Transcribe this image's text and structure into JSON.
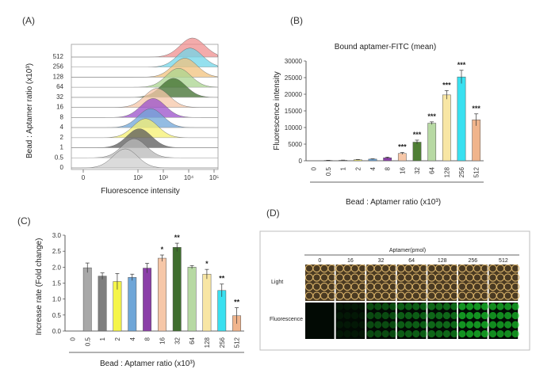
{
  "panel_labels": [
    "(A)",
    "(B)",
    "(C)",
    "(D)"
  ],
  "chart_data": [
    {
      "id": "A",
      "type": "area",
      "xlabel": "Fluorescence intensity",
      "ylabel": "Bead : Aptamer ratio (x10³)",
      "x_scale": "log",
      "x_ticks": [
        "0",
        "10²",
        "10³",
        "10⁴",
        "10⁵"
      ],
      "categories": [
        "0",
        "0.5",
        "1",
        "2",
        "4",
        "8",
        "16",
        "32",
        "64",
        "128",
        "256",
        "512"
      ],
      "peak_log10": [
        1.5,
        1.85,
        2.05,
        2.3,
        2.5,
        2.6,
        2.75,
        3.4,
        3.6,
        3.85,
        4.05,
        4.15
      ],
      "colors": [
        "#cfcfcf",
        "#b8b8b8",
        "#5a5a5a",
        "#f5f070",
        "#6fa6d8",
        "#9a4fc9",
        "#f6c7a8",
        "#3f6e2e",
        "#a9d48f",
        "#f2c27c",
        "#72d5e8",
        "#ef8f8f"
      ]
    },
    {
      "id": "B",
      "type": "bar",
      "title": "Bound aptamer-FITC (mean)",
      "xlabel": "Bead : Aptamer ratio (x10³)",
      "ylabel": "Fluorescence intensity",
      "ylim": [
        0,
        30000
      ],
      "yticks": [
        "0",
        "5000",
        "10000",
        "15000",
        "20000",
        "25000",
        "30000"
      ],
      "categories": [
        "0",
        "0.5",
        "1",
        "2",
        "4",
        "8",
        "16",
        "32",
        "64",
        "128",
        "256",
        "512"
      ],
      "values": [
        0,
        100,
        150,
        300,
        500,
        900,
        2200,
        5600,
        11300,
        19800,
        25200,
        12300
      ],
      "errors": [
        0,
        50,
        50,
        80,
        100,
        200,
        300,
        600,
        400,
        1300,
        2000,
        1800
      ],
      "significance": [
        "",
        "",
        "",
        "",
        "",
        "",
        "***",
        "***",
        "***",
        "***",
        "***",
        "***"
      ],
      "colors": [
        "#8c8c8c",
        "#7f7f7f",
        "#d8d8d8",
        "#f5f070",
        "#6fa6d8",
        "#8b3fa8",
        "#f6c7a8",
        "#4f7f35",
        "#b7d9a3",
        "#f8e6a4",
        "#39e0f0",
        "#f0b48c"
      ]
    },
    {
      "id": "C",
      "type": "bar",
      "xlabel": "Bead : Aptamer ratio (x10³)",
      "ylabel": "Increase rate (Fold change)",
      "ylim": [
        0,
        3.0
      ],
      "yticks": [
        "0.0",
        "0.5",
        "1.0",
        "1.5",
        "2.0",
        "2.5",
        "3.0"
      ],
      "categories": [
        "0",
        "0.5",
        "1",
        "2",
        "4",
        "8",
        "16",
        "32",
        "64",
        "128",
        "256",
        "512"
      ],
      "values": [
        null,
        1.98,
        1.72,
        1.55,
        1.68,
        1.97,
        2.28,
        2.62,
        2.0,
        1.78,
        1.27,
        0.48
      ],
      "errors": [
        0,
        0.15,
        0.1,
        0.25,
        0.1,
        0.15,
        0.1,
        0.13,
        0.05,
        0.15,
        0.2,
        0.25
      ],
      "significance": [
        "",
        "",
        "",
        "",
        "",
        "",
        "*",
        "**",
        "",
        "*",
        "**",
        "**"
      ],
      "colors": [
        "#ffffff",
        "#a8a8a8",
        "#7f7f7f",
        "#f5f54a",
        "#6fa6d8",
        "#8b3fa8",
        "#f6c7a8",
        "#3f6e2e",
        "#b7d9a3",
        "#f8e6a4",
        "#39e0f0",
        "#f0b48c"
      ]
    }
  ],
  "microscopy": {
    "header": "Aptamer(pmol)",
    "columns": [
      "0",
      "16",
      "32",
      "64",
      "128",
      "256",
      "512"
    ],
    "rows": [
      "Light",
      "Fluorescence"
    ]
  }
}
